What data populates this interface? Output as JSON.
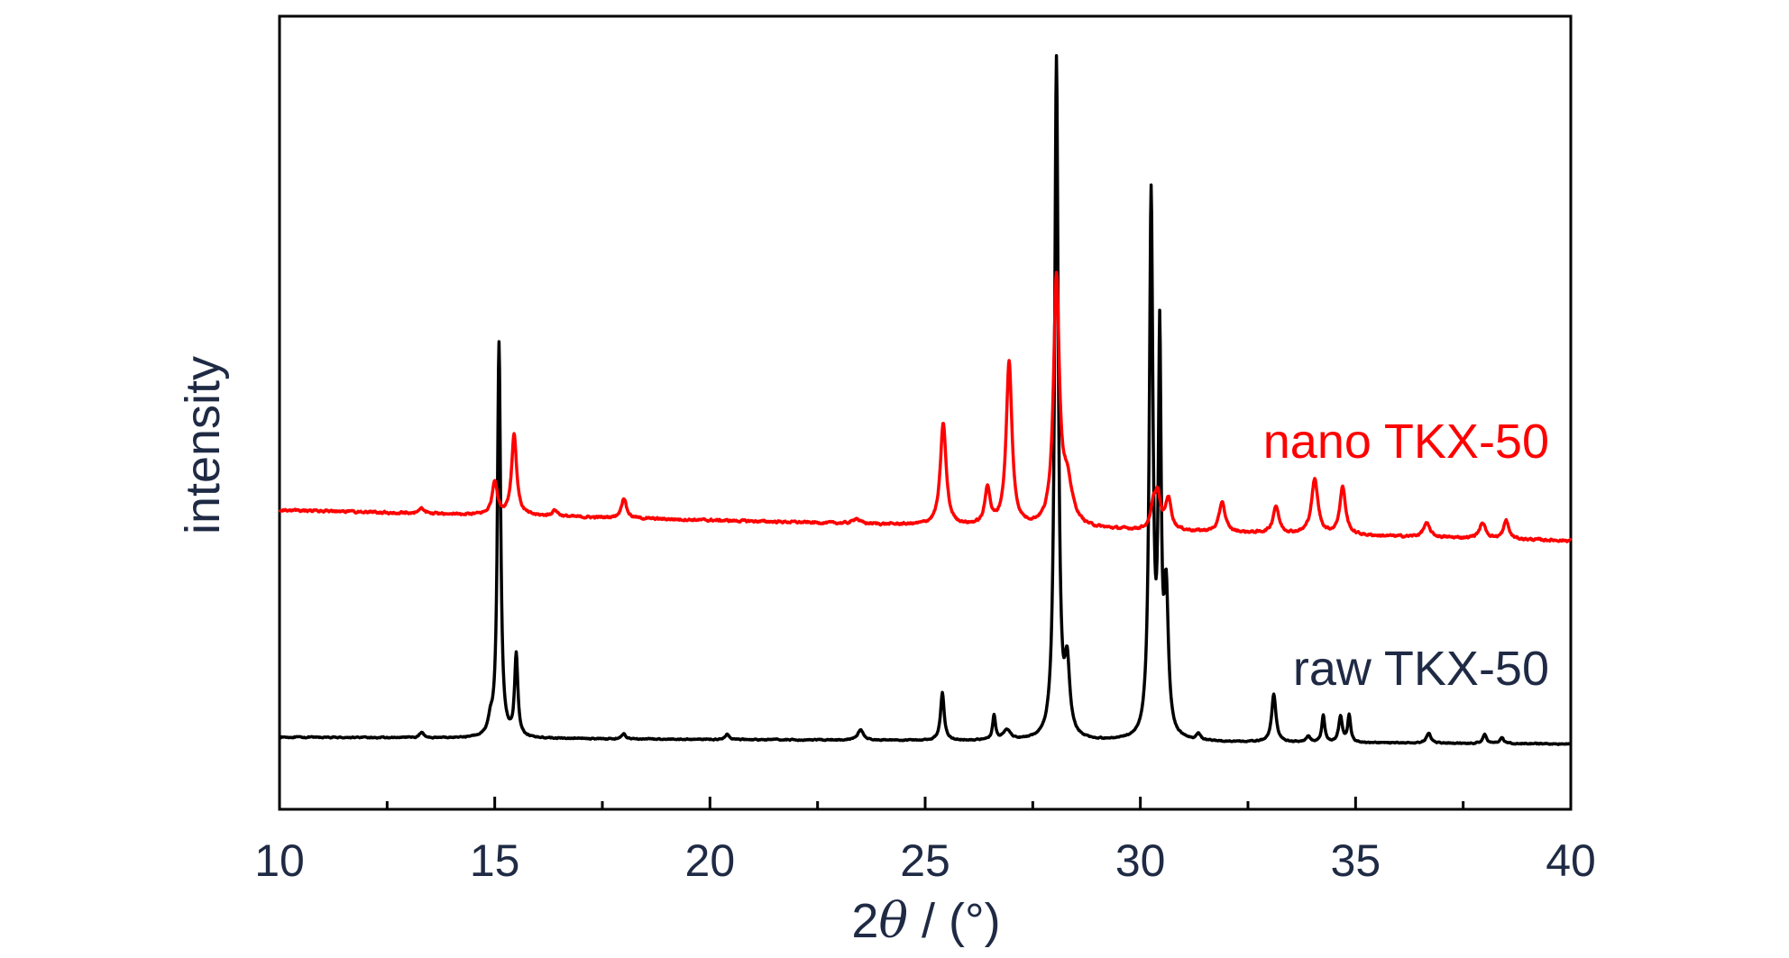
{
  "chart_data": {
    "type": "line",
    "xlabel_prefix": "2",
    "xlabel_symbol": "θ",
    "xlabel_suffix": " / (°)",
    "ylabel": "intensity",
    "xlim": [
      10,
      40
    ],
    "xticks": [
      "10",
      "15",
      "20",
      "25",
      "30",
      "35",
      "40"
    ],
    "yticks_shown": false,
    "grid": false,
    "series": [
      {
        "name": "raw TKX-50",
        "color": "#000000",
        "baseline_start": 0.0,
        "baseline_end": -0.01,
        "noise": 0.0015,
        "peaks": [
          {
            "x": 13.3,
            "h": 0.008,
            "w": 0.06
          },
          {
            "x": 14.9,
            "h": 0.02,
            "w": 0.06
          },
          {
            "x": 15.1,
            "h": 0.58,
            "w": 0.045
          },
          {
            "x": 15.5,
            "h": 0.12,
            "w": 0.045
          },
          {
            "x": 18.0,
            "h": 0.008,
            "w": 0.05
          },
          {
            "x": 20.4,
            "h": 0.008,
            "w": 0.05
          },
          {
            "x": 23.5,
            "h": 0.015,
            "w": 0.08
          },
          {
            "x": 25.4,
            "h": 0.07,
            "w": 0.05
          },
          {
            "x": 26.6,
            "h": 0.036,
            "w": 0.04
          },
          {
            "x": 26.9,
            "h": 0.015,
            "w": 0.1
          },
          {
            "x": 28.05,
            "h": 1.0,
            "w": 0.05
          },
          {
            "x": 28.3,
            "h": 0.1,
            "w": 0.07
          },
          {
            "x": 30.25,
            "h": 0.79,
            "w": 0.05
          },
          {
            "x": 30.45,
            "h": 0.56,
            "w": 0.04
          },
          {
            "x": 30.6,
            "h": 0.2,
            "w": 0.06
          },
          {
            "x": 31.35,
            "h": 0.01,
            "w": 0.05
          },
          {
            "x": 33.1,
            "h": 0.07,
            "w": 0.06
          },
          {
            "x": 33.9,
            "h": 0.008,
            "w": 0.06
          },
          {
            "x": 34.25,
            "h": 0.04,
            "w": 0.04
          },
          {
            "x": 34.65,
            "h": 0.038,
            "w": 0.05
          },
          {
            "x": 34.85,
            "h": 0.04,
            "w": 0.04
          },
          {
            "x": 36.7,
            "h": 0.015,
            "w": 0.06
          },
          {
            "x": 38.0,
            "h": 0.014,
            "w": 0.05
          },
          {
            "x": 38.4,
            "h": 0.008,
            "w": 0.05
          }
        ]
      },
      {
        "name": "nano TKX-50",
        "color": "#ff0000",
        "baseline_start": 0.0,
        "baseline_end": -0.045,
        "noise": 0.003,
        "peaks": [
          {
            "x": 13.3,
            "h": 0.008,
            "w": 0.06
          },
          {
            "x": 15.0,
            "h": 0.05,
            "w": 0.07
          },
          {
            "x": 15.45,
            "h": 0.12,
            "w": 0.07
          },
          {
            "x": 16.4,
            "h": 0.009,
            "w": 0.08
          },
          {
            "x": 18.0,
            "h": 0.03,
            "w": 0.07
          },
          {
            "x": 23.4,
            "h": 0.008,
            "w": 0.08
          },
          {
            "x": 25.42,
            "h": 0.15,
            "w": 0.08
          },
          {
            "x": 26.45,
            "h": 0.055,
            "w": 0.07
          },
          {
            "x": 26.95,
            "h": 0.24,
            "w": 0.08
          },
          {
            "x": 28.05,
            "h": 0.36,
            "w": 0.08
          },
          {
            "x": 28.3,
            "h": 0.06,
            "w": 0.15
          },
          {
            "x": 30.3,
            "h": 0.03,
            "w": 0.06
          },
          {
            "x": 30.4,
            "h": 0.05,
            "w": 0.08
          },
          {
            "x": 30.65,
            "h": 0.046,
            "w": 0.08
          },
          {
            "x": 31.9,
            "h": 0.045,
            "w": 0.08
          },
          {
            "x": 33.15,
            "h": 0.04,
            "w": 0.08
          },
          {
            "x": 34.05,
            "h": 0.08,
            "w": 0.09
          },
          {
            "x": 34.7,
            "h": 0.07,
            "w": 0.08
          },
          {
            "x": 36.65,
            "h": 0.02,
            "w": 0.09
          },
          {
            "x": 37.95,
            "h": 0.022,
            "w": 0.09
          },
          {
            "x": 38.5,
            "h": 0.027,
            "w": 0.07
          }
        ]
      }
    ]
  }
}
